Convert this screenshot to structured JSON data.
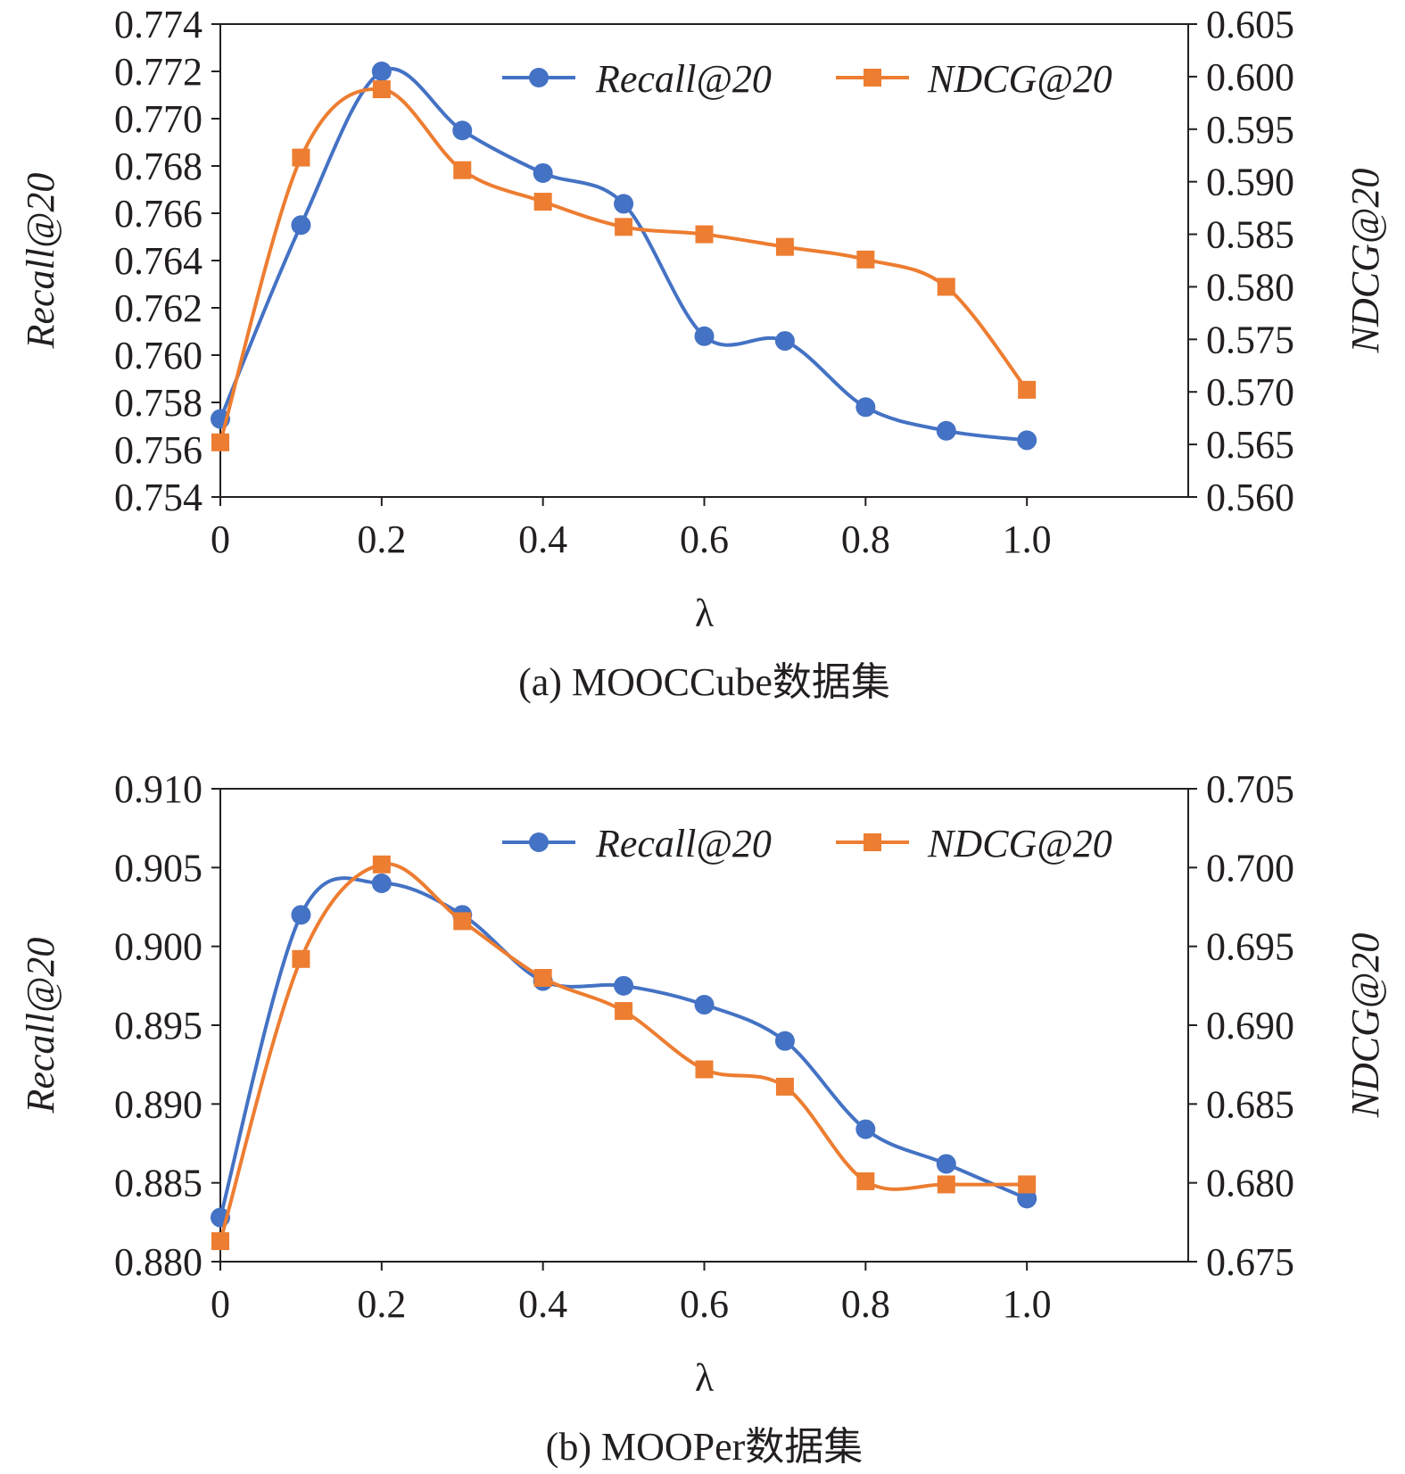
{
  "colors": {
    "recall": "#4472c4",
    "ndcg": "#ed7d31",
    "axis": "#231f20"
  },
  "chart_data": [
    {
      "type": "line",
      "caption": "(a)  MOOCCube数据集",
      "xlabel": "λ",
      "ylabel": "Recall@20",
      "y2label": "NDCG@20",
      "xlim": [
        0,
        1.2
      ],
      "xticks": [
        0,
        0.2,
        0.4,
        0.6,
        0.8,
        1.0
      ],
      "xtick_labels": [
        "0",
        "0.2",
        "0.4",
        "0.6",
        "0.8",
        "1.0"
      ],
      "ylim": [
        0.754,
        0.774
      ],
      "yticks": [
        0.754,
        0.756,
        0.758,
        0.76,
        0.762,
        0.764,
        0.766,
        0.768,
        0.77,
        0.772,
        0.774
      ],
      "ytick_labels": [
        "0.754",
        "0.756",
        "0.758",
        "0.760",
        "0.762",
        "0.764",
        "0.766",
        "0.768",
        "0.770",
        "0.772",
        "0.774"
      ],
      "y2lim": [
        0.56,
        0.605
      ],
      "y2ticks": [
        0.56,
        0.565,
        0.57,
        0.575,
        0.58,
        0.585,
        0.59,
        0.595,
        0.6,
        0.605
      ],
      "y2tick_labels": [
        "0.560",
        "0.565",
        "0.570",
        "0.575",
        "0.580",
        "0.585",
        "0.590",
        "0.595",
        "0.600",
        "0.605"
      ],
      "legend_position": "top-right",
      "grid": false,
      "x": [
        0,
        0.1,
        0.2,
        0.3,
        0.4,
        0.5,
        0.6,
        0.7,
        0.8,
        0.9,
        1.0
      ],
      "series": [
        {
          "name": "Recall@20",
          "axis": "left",
          "marker": "circle",
          "values": [
            0.7573,
            0.7655,
            0.772,
            0.7695,
            0.7677,
            0.7664,
            0.7608,
            0.7606,
            0.7578,
            0.7568,
            0.7564
          ]
        },
        {
          "name": "NDCG@20",
          "axis": "right",
          "marker": "square",
          "values": [
            0.5652,
            0.5923,
            0.5988,
            0.5911,
            0.5881,
            0.5857,
            0.585,
            0.5838,
            0.5826,
            0.58,
            0.5702
          ]
        }
      ]
    },
    {
      "type": "line",
      "caption": "(b)  MOOPer数据集",
      "xlabel": "λ",
      "ylabel": "Recall@20",
      "y2label": "NDCG@20",
      "xlim": [
        0,
        1.2
      ],
      "xticks": [
        0,
        0.2,
        0.4,
        0.6,
        0.8,
        1.0
      ],
      "xtick_labels": [
        "0",
        "0.2",
        "0.4",
        "0.6",
        "0.8",
        "1.0"
      ],
      "ylim": [
        0.88,
        0.91
      ],
      "yticks": [
        0.88,
        0.885,
        0.89,
        0.895,
        0.9,
        0.905,
        0.91
      ],
      "ytick_labels": [
        "0.880",
        "0.885",
        "0.890",
        "0.895",
        "0.900",
        "0.905",
        "0.910"
      ],
      "y2lim": [
        0.675,
        0.705
      ],
      "y2ticks": [
        0.675,
        0.68,
        0.685,
        0.69,
        0.695,
        0.7,
        0.705
      ],
      "y2tick_labels": [
        "0.675",
        "0.680",
        "0.685",
        "0.690",
        "0.695",
        "0.700",
        "0.705"
      ],
      "legend_position": "top-right",
      "grid": false,
      "x": [
        0,
        0.1,
        0.2,
        0.3,
        0.4,
        0.5,
        0.6,
        0.7,
        0.8,
        0.9,
        1.0
      ],
      "series": [
        {
          "name": "Recall@20",
          "axis": "left",
          "marker": "circle",
          "values": [
            0.8828,
            0.902,
            0.904,
            0.902,
            0.8978,
            0.8975,
            0.8963,
            0.894,
            0.8884,
            0.8862,
            0.884
          ]
        },
        {
          "name": "NDCG@20",
          "axis": "right",
          "marker": "square",
          "values": [
            0.6763,
            0.6942,
            0.7002,
            0.6966,
            0.693,
            0.6909,
            0.6872,
            0.6861,
            0.6801,
            0.6799,
            0.6799
          ]
        }
      ]
    }
  ]
}
